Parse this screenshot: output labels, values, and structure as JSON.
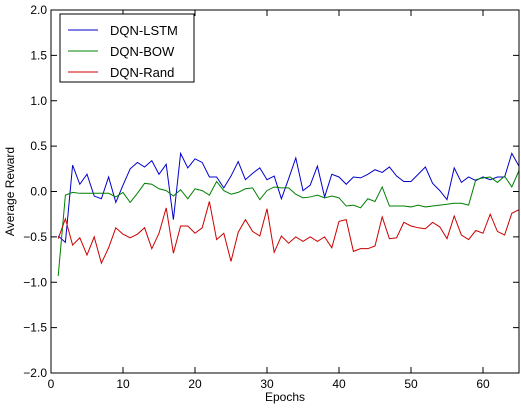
{
  "chart_data": {
    "type": "line",
    "title": "",
    "xlabel": "Epochs",
    "ylabel": "Average Reward",
    "xlim": [
      0,
      65
    ],
    "ylim": [
      -2.0,
      2.0
    ],
    "xticks": [
      0,
      10,
      20,
      30,
      40,
      50,
      60
    ],
    "yticks": [
      -2.0,
      -1.5,
      -1.0,
      -0.5,
      0.0,
      0.5,
      1.0,
      1.5,
      2.0
    ],
    "xtick_labels": [
      "0",
      "10",
      "20",
      "30",
      "40",
      "50",
      "60"
    ],
    "ytick_labels": [
      "−2.0",
      "−1.5",
      "−1.0",
      "−0.5",
      "0.0",
      "0.5",
      "1.0",
      "1.5",
      "2.0"
    ],
    "grid": false,
    "legend_position": "top-left",
    "x": [
      1,
      2,
      3,
      4,
      5,
      6,
      7,
      8,
      9,
      10,
      11,
      12,
      13,
      14,
      15,
      16,
      17,
      18,
      19,
      20,
      21,
      22,
      23,
      24,
      25,
      26,
      27,
      28,
      29,
      30,
      31,
      32,
      33,
      34,
      35,
      36,
      37,
      38,
      39,
      40,
      41,
      42,
      43,
      44,
      45,
      46,
      47,
      48,
      49,
      50,
      51,
      52,
      53,
      54,
      55,
      56,
      57,
      58,
      59,
      60,
      61,
      62,
      63,
      64,
      65
    ],
    "series": [
      {
        "name": "DQN-LSTM",
        "color": "#0000cc",
        "values": [
          -0.49,
          -0.56,
          0.29,
          0.08,
          0.19,
          -0.05,
          -0.08,
          0.16,
          -0.12,
          0.07,
          0.25,
          0.32,
          0.27,
          0.34,
          0.19,
          0.3,
          -0.31,
          0.42,
          0.26,
          0.36,
          0.32,
          0.16,
          0.16,
          0.04,
          0.17,
          0.33,
          0.13,
          0.2,
          0.26,
          0.13,
          0.17,
          -0.08,
          0.14,
          0.37,
          0.01,
          0.07,
          0.28,
          -0.06,
          0.19,
          0.16,
          0.08,
          0.16,
          0.15,
          0.19,
          0.24,
          0.21,
          0.27,
          0.17,
          0.11,
          0.11,
          0.19,
          0.27,
          0.09,
          0.01,
          -0.09,
          0.26,
          0.1,
          0.16,
          0.12,
          0.16,
          0.13,
          0.16,
          0.16,
          0.42,
          0.28
        ]
      },
      {
        "name": "DQN-BOW",
        "color": "#008000",
        "values": [
          -0.93,
          -0.04,
          -0.01,
          -0.02,
          -0.02,
          -0.02,
          -0.02,
          -0.02,
          -0.06,
          -0.01,
          -0.12,
          -0.02,
          0.09,
          0.08,
          0.03,
          0.01,
          -0.05,
          0.02,
          -0.08,
          0.03,
          0.01,
          -0.04,
          0.11,
          0.01,
          -0.03,
          -0.01,
          0.03,
          0.04,
          -0.09,
          0.01,
          0.05,
          0.04,
          0.04,
          -0.03,
          -0.07,
          -0.06,
          -0.04,
          -0.07,
          -0.05,
          -0.07,
          -0.16,
          -0.15,
          -0.18,
          -0.08,
          -0.11,
          0.05,
          -0.16,
          -0.16,
          -0.16,
          -0.17,
          -0.15,
          -0.17,
          -0.16,
          -0.15,
          -0.14,
          -0.13,
          -0.13,
          -0.15,
          0.13,
          0.15,
          0.16,
          0.1,
          0.17,
          0.05,
          0.23
        ]
      },
      {
        "name": "DQN-Rand",
        "color": "#cc0000",
        "values": [
          -0.52,
          -0.3,
          -0.59,
          -0.51,
          -0.7,
          -0.5,
          -0.79,
          -0.62,
          -0.4,
          -0.47,
          -0.51,
          -0.47,
          -0.4,
          -0.63,
          -0.46,
          -0.18,
          -0.68,
          -0.38,
          -0.38,
          -0.46,
          -0.4,
          -0.11,
          -0.53,
          -0.46,
          -0.77,
          -0.45,
          -0.31,
          -0.44,
          -0.49,
          -0.19,
          -0.67,
          -0.49,
          -0.57,
          -0.5,
          -0.55,
          -0.5,
          -0.55,
          -0.5,
          -0.62,
          -0.33,
          -0.31,
          -0.66,
          -0.63,
          -0.63,
          -0.6,
          -0.28,
          -0.52,
          -0.51,
          -0.34,
          -0.38,
          -0.4,
          -0.41,
          -0.34,
          -0.39,
          -0.52,
          -0.27,
          -0.48,
          -0.53,
          -0.43,
          -0.46,
          -0.25,
          -0.44,
          -0.48,
          -0.24,
          -0.2
        ]
      }
    ]
  }
}
